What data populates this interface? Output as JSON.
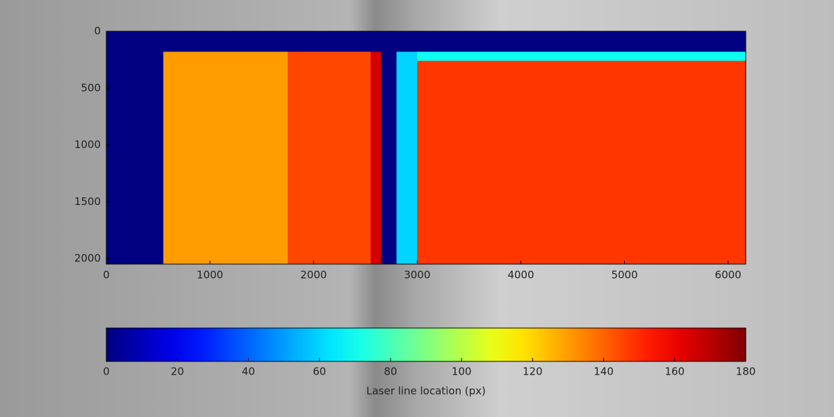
{
  "chart_data": {
    "type": "heatmap",
    "x_edges": [
      0,
      550,
      1750,
      2550,
      2650,
      2800,
      3000,
      6170
    ],
    "y_edges": [
      0,
      180,
      260,
      2048
    ],
    "values": [
      [
        0,
        0,
        0,
        0,
        0,
        0,
        0
      ],
      [
        0,
        130,
        145,
        165,
        0,
        60,
        70
      ],
      [
        0,
        130,
        145,
        165,
        0,
        60,
        148
      ]
    ],
    "xlim": [
      0,
      6170
    ],
    "xticks": [
      0,
      1000,
      2000,
      3000,
      4000,
      5000,
      6000
    ],
    "ylim": [
      0,
      2048
    ],
    "yticks": [
      0,
      500,
      1000,
      1500,
      2000
    ],
    "y_inverted": true,
    "colormap": "jet",
    "colorbar": {
      "label": "Laser line location (px)",
      "lim": [
        0,
        180
      ],
      "ticks": [
        0,
        20,
        40,
        60,
        80,
        100,
        120,
        140,
        160,
        180
      ]
    }
  }
}
